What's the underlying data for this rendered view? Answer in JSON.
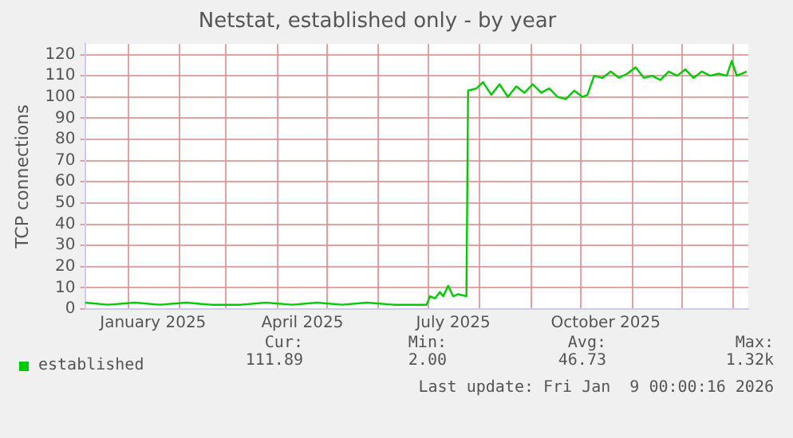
{
  "chart_data": {
    "type": "line",
    "title": "Netstat, established only - by year",
    "ylabel": "TCP connections",
    "x": [
      "2024-12-06",
      "2024-12-20",
      "2025-01-05",
      "2025-01-20",
      "2025-02-05",
      "2025-02-20",
      "2025-03-10",
      "2025-03-25",
      "2025-04-10",
      "2025-04-25",
      "2025-05-10",
      "2025-05-25",
      "2025-06-10",
      "2025-06-25",
      "2025-06-30",
      "2025-07-02",
      "2025-07-05",
      "2025-07-08",
      "2025-07-10",
      "2025-07-13",
      "2025-07-16",
      "2025-07-19",
      "2025-07-24",
      "2025-07-25",
      "2025-07-30",
      "2025-08-03",
      "2025-08-08",
      "2025-08-13",
      "2025-08-18",
      "2025-08-23",
      "2025-08-28",
      "2025-09-02",
      "2025-09-07",
      "2025-09-12",
      "2025-09-17",
      "2025-09-22",
      "2025-09-27",
      "2025-10-02",
      "2025-10-05",
      "2025-10-09",
      "2025-10-14",
      "2025-10-19",
      "2025-10-24",
      "2025-10-29",
      "2025-11-03",
      "2025-11-08",
      "2025-11-13",
      "2025-11-18",
      "2025-11-23",
      "2025-11-28",
      "2025-12-03",
      "2025-12-08",
      "2025-12-13",
      "2025-12-18",
      "2025-12-23",
      "2025-12-28",
      "2025-12-31",
      "2026-01-03",
      "2026-01-09"
    ],
    "series": [
      {
        "name": "established",
        "color": "#00cc00",
        "values": [
          3,
          2,
          3,
          2,
          3,
          2,
          2,
          3,
          2,
          3,
          2,
          3,
          2,
          2,
          2,
          6,
          5,
          8,
          6,
          11,
          6,
          7,
          6,
          103,
          104,
          107,
          101,
          106,
          100,
          105,
          102,
          106,
          102,
          104,
          100,
          99,
          103,
          100,
          101,
          110,
          109,
          112,
          109,
          111,
          114,
          109,
          110,
          108,
          112,
          110,
          113,
          109,
          112,
          110,
          111,
          110,
          117,
          110,
          112
        ]
      }
    ],
    "xlim": [
      "2024-12-06",
      "2026-01-10"
    ],
    "xticks": [
      {
        "value": "2025-01-01",
        "label": null
      },
      {
        "value": "2025-01-16",
        "label": "January 2025"
      },
      {
        "value": "2025-02-01",
        "label": null
      },
      {
        "value": "2025-03-01",
        "label": null
      },
      {
        "value": "2025-04-01",
        "label": null
      },
      {
        "value": "2025-04-16",
        "label": "April 2025"
      },
      {
        "value": "2025-05-01",
        "label": null
      },
      {
        "value": "2025-06-01",
        "label": null
      },
      {
        "value": "2025-07-01",
        "label": null
      },
      {
        "value": "2025-07-16",
        "label": "July 2025"
      },
      {
        "value": "2025-08-01",
        "label": null
      },
      {
        "value": "2025-09-01",
        "label": null
      },
      {
        "value": "2025-10-01",
        "label": null
      },
      {
        "value": "2025-10-16",
        "label": "October 2025"
      },
      {
        "value": "2025-11-01",
        "label": null
      },
      {
        "value": "2025-12-01",
        "label": null
      },
      {
        "value": "2026-01-01",
        "label": null
      }
    ],
    "ylim": [
      0,
      125
    ],
    "yticks": [
      0,
      10,
      20,
      30,
      40,
      50,
      60,
      70,
      80,
      90,
      100,
      110,
      120
    ],
    "grid": true,
    "legend": "bottom left",
    "marker": "none",
    "line_style": "solid",
    "annotations": [
      "Cur:",
      "111.89",
      "Min:",
      "2.00",
      "Avg:",
      "46.73",
      "Max:",
      "1.32k",
      "Last update: Fri Jan  9 00:00:16 2026"
    ]
  }
}
